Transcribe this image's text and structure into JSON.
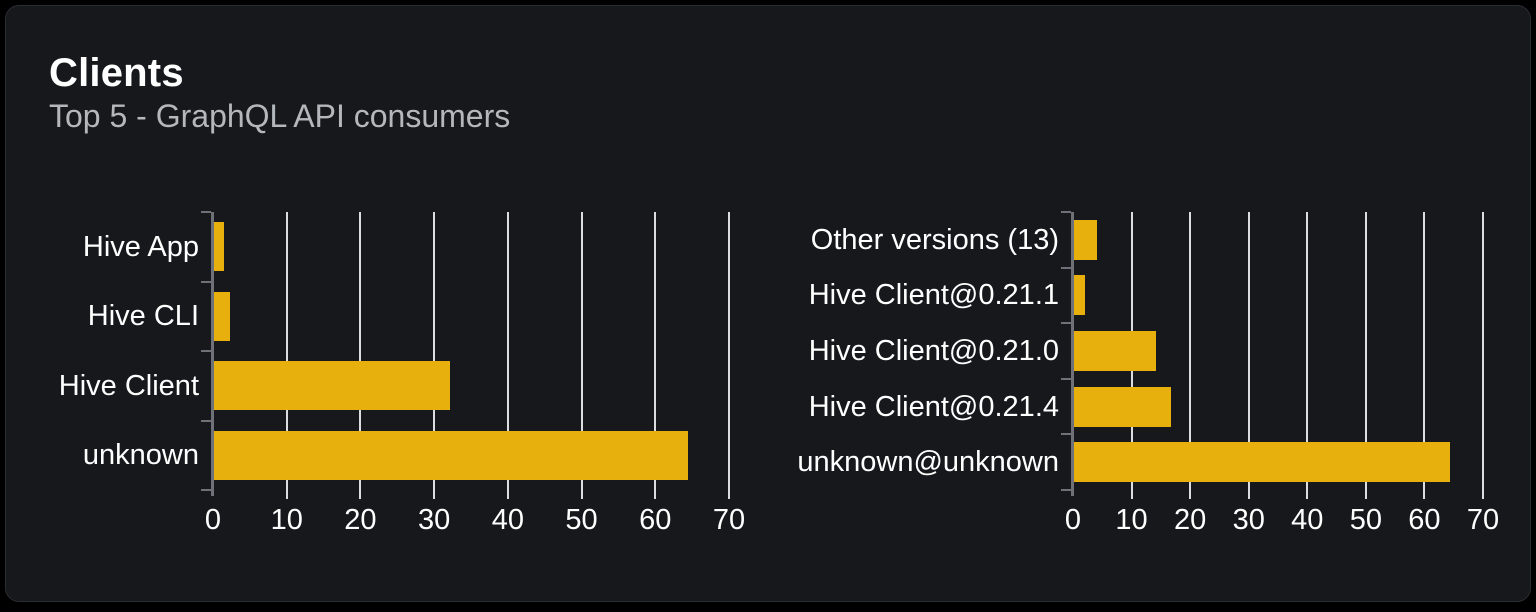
{
  "page": {
    "title": "Clients",
    "subtitle": "Top 5 - GraphQL API consumers"
  },
  "colors": {
    "bar": "#e8b00d",
    "gridline": "#dcdde1",
    "axis": "#6e7178",
    "title_text": "#ffffff",
    "subtitle_text": "#b4b8bd",
    "label_text": "#ffffff",
    "tick_text": "#ffffff",
    "card_bg": "#16181c",
    "card_border": "#2a2d33",
    "page_bg": "#000000"
  },
  "chart_data": [
    {
      "type": "bar",
      "orientation": "horizontal",
      "title": "",
      "categories": [
        "Hive App",
        "Hive CLI",
        "Hive Client",
        "unknown"
      ],
      "values": [
        1.5,
        2.3,
        32.2,
        64.5
      ],
      "xlabel": "",
      "ylabel": "",
      "xlim": [
        0,
        70
      ],
      "xticks": [
        0,
        10,
        20,
        30,
        40,
        50,
        60,
        70
      ],
      "grid": true,
      "legend": false
    },
    {
      "type": "bar",
      "orientation": "horizontal",
      "title": "",
      "categories": [
        "Other versions (13)",
        "Hive Client@0.21.1",
        "Hive Client@0.21.0",
        "Hive Client@0.21.4",
        "unknown@unknown"
      ],
      "values": [
        4.1,
        2.0,
        14.1,
        16.8,
        64.3
      ],
      "xlabel": "",
      "ylabel": "",
      "xlim": [
        0,
        70
      ],
      "xticks": [
        0,
        10,
        20,
        30,
        40,
        50,
        60,
        70
      ],
      "grid": true,
      "legend": false
    }
  ]
}
